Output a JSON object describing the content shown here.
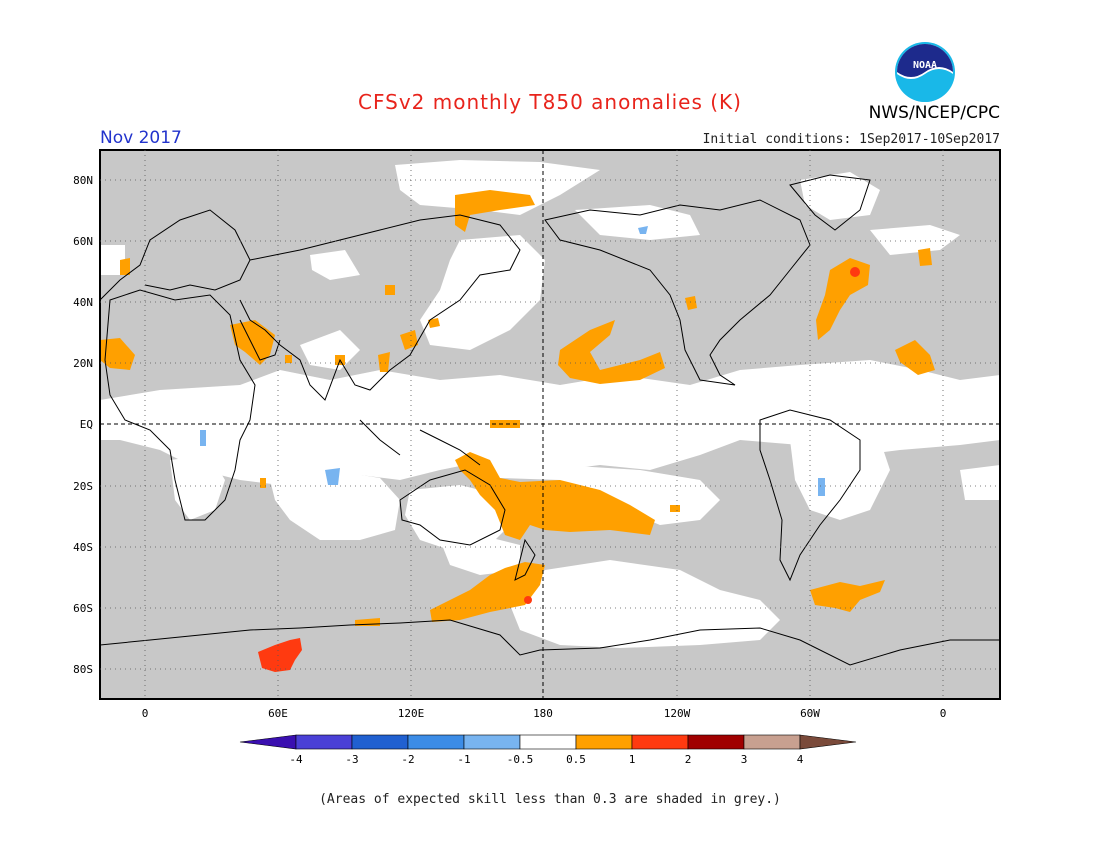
{
  "header": {
    "title": "CFSv2 monthly T850 anomalies (K)",
    "month": "Nov 2017",
    "initial_conditions": "Initial conditions: 1Sep2017-10Sep2017",
    "agency": "NWS/NCEP/CPC",
    "logo_text": "NOAA"
  },
  "map": {
    "lat_labels": [
      "80N",
      "60N",
      "40N",
      "20N",
      "EQ",
      "20S",
      "40S",
      "60S",
      "80S"
    ],
    "lon_labels": [
      "0",
      "60E",
      "120E",
      "180",
      "120W",
      "60W",
      "0"
    ],
    "colors": {
      "low_skill": "#c8c8c8",
      "neutral": "#ffffff",
      "warm_0_5_1": "#ffa000",
      "warm_1_2": "#ff3a10",
      "cool_0_5_1": "#78b4f0",
      "coast": "#000000"
    }
  },
  "colorbar": {
    "labels": [
      "-4",
      "-3",
      "-2",
      "-1",
      "-0.5",
      "0.5",
      "1",
      "2",
      "3",
      "4"
    ],
    "colors": [
      "#3a0fb0",
      "#4a40d6",
      "#2060d0",
      "#3c8ce6",
      "#78b4f0",
      "#ffffff",
      "#ffa000",
      "#ff3a10",
      "#a00000",
      "#c8a090",
      "#7a4a3a"
    ]
  },
  "footnote": "(Areas of expected skill less than 0.3 are shaded in grey.)"
}
